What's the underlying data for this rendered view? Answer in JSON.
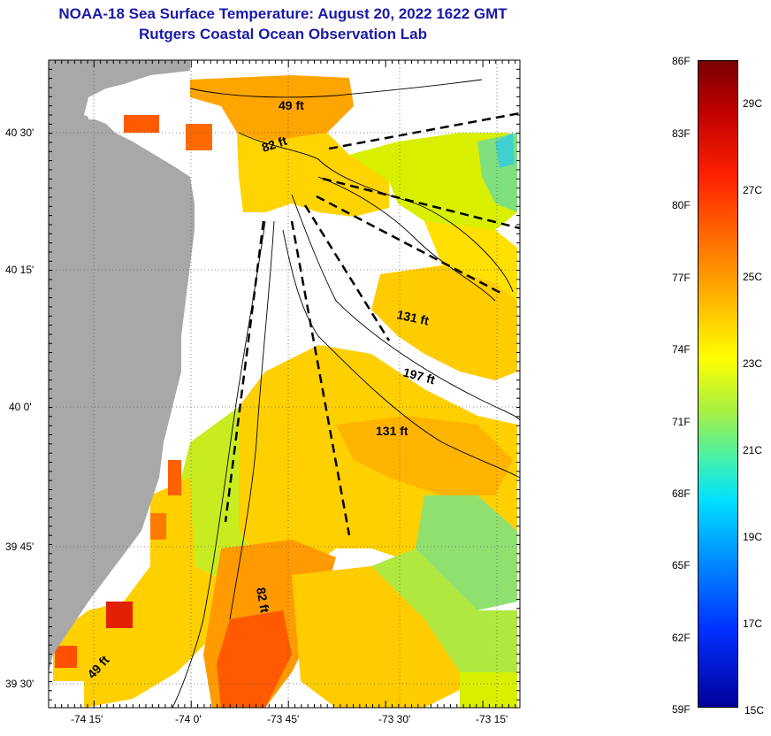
{
  "title": {
    "line1": "NOAA-18 Sea Surface Temperature:  August 20, 2022 1622 GMT",
    "line2": "Rutgers Coastal Ocean Observation Lab"
  },
  "map": {
    "lat_labels": [
      "40 30'",
      "40 15'",
      "40 0'",
      "39 45'",
      "39 30'"
    ],
    "lon_labels": [
      "-74 15'",
      "-74 0'",
      "-73 45'",
      "-73 30'",
      "-73 15'"
    ],
    "isobath_labels": [
      "49 ft",
      "82 ft",
      "131 ft",
      "197 ft",
      "131 ft",
      "82 ft",
      "49 ft"
    ]
  },
  "colorbar": {
    "fahrenheit": [
      "86F",
      "83F",
      "80F",
      "77F",
      "74F",
      "71F",
      "68F",
      "65F",
      "62F",
      "59F"
    ],
    "celsius": [
      "29C",
      "27C",
      "25C",
      "23C",
      "21C",
      "19C",
      "17C",
      "15C"
    ]
  },
  "colors": {
    "land": "#a8a8a8",
    "title": "#1a1aa8"
  }
}
